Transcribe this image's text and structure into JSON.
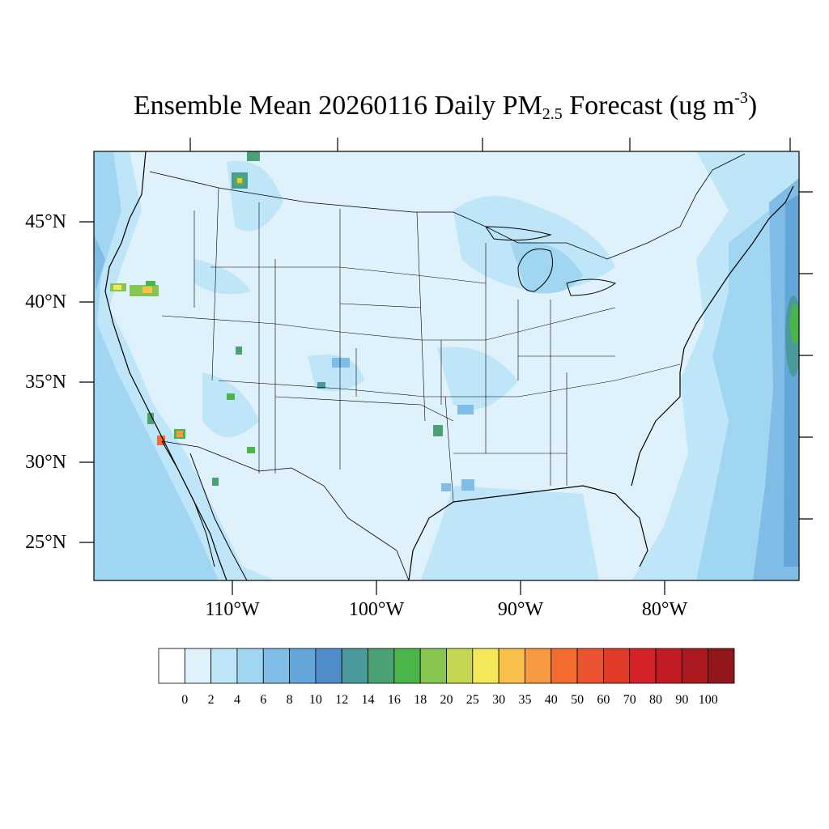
{
  "title": {
    "main": "Ensemble Mean 20260116 Daily PM",
    "subscript": "2.5",
    "tail": " Forecast (ug m",
    "superscript": "-3",
    "close": ")"
  },
  "lat_labels": [
    "45°N",
    "40°N",
    "35°N",
    "30°N",
    "25°N"
  ],
  "lon_labels": [
    "110°W",
    "100°W",
    "90°W",
    "80°W"
  ],
  "colorbar": {
    "colors": [
      "#ffffff",
      "#dff2fb",
      "#bfe6f8",
      "#a0d6f2",
      "#7fbde6",
      "#64a5da",
      "#4f8cca",
      "#4a999b",
      "#4aa274",
      "#4ab649",
      "#86c650",
      "#c4d652",
      "#f5e75a",
      "#f9c04b",
      "#f79940",
      "#f46b30",
      "#ea5430",
      "#e03b28",
      "#d42228",
      "#c11b24",
      "#ac1a1f",
      "#91171b"
    ],
    "labels": [
      "0",
      "2",
      "4",
      "6",
      "8",
      "10",
      "12",
      "14",
      "16",
      "18",
      "20",
      "25",
      "30",
      "35",
      "40",
      "50",
      "60",
      "70",
      "80",
      "90",
      "100"
    ]
  },
  "colors": {
    "background_field": "#dff2fb",
    "west_coast_field": "#a0d6f2",
    "ocean_field": "#7fbde6",
    "boundaries": "#000000"
  }
}
